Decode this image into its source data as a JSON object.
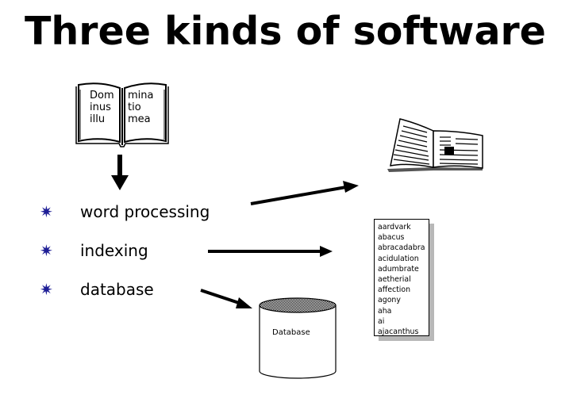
{
  "title": "Three kinds of software",
  "book": {
    "left_text": "Dom\ninus\nillu",
    "right_text": "mina\ntio\nmea"
  },
  "bullets": [
    {
      "label": "word processing",
      "icon": "star-bullet-icon"
    },
    {
      "label": "indexing",
      "icon": "star-bullet-icon"
    },
    {
      "label": "database",
      "icon": "star-bullet-icon"
    }
  ],
  "word_list": [
    "aardvark",
    "abacus",
    "abracadabra",
    "acidulation",
    "adumbrate",
    "aetherial",
    "affection",
    "agony",
    "aha",
    "ai",
    "ajacanthus"
  ],
  "database_label": "Database",
  "colors": {
    "bullet": "#1e1e96",
    "text": "#000000",
    "shadow": "#b8b8b8"
  },
  "icons": {
    "book": "open-book-icon",
    "magazine": "open-magazine-icon",
    "database": "database-cylinder-icon"
  }
}
